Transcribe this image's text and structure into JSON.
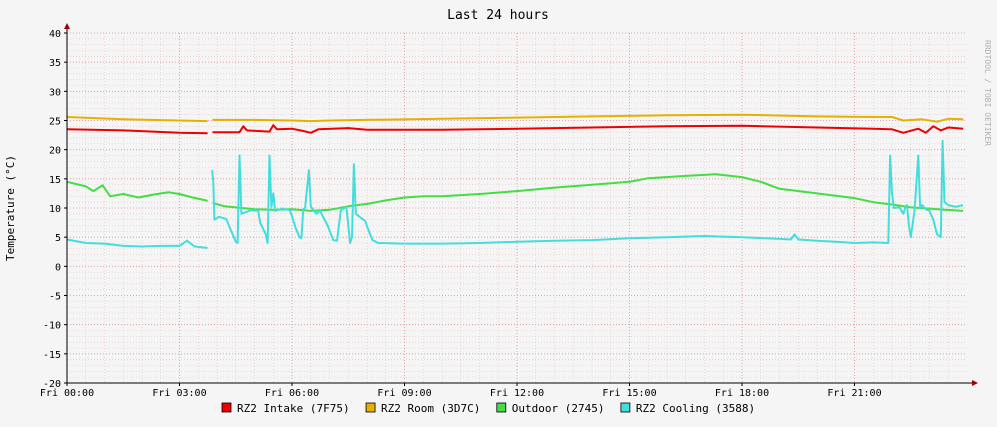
{
  "chart_data": {
    "type": "line",
    "title": "Last 24 hours",
    "ylabel": "Temperature (°C)",
    "watermark": "RRDTOOL / TOBI OETIKER",
    "ylim": [
      -20,
      40
    ],
    "y_ticks": [
      40,
      35,
      30,
      25,
      20,
      15,
      10,
      5,
      0,
      -5,
      -10,
      -15,
      -20
    ],
    "x_range_hours": [
      0,
      24
    ],
    "x_ticks": [
      {
        "hour": 0,
        "label": "Fri 00:00"
      },
      {
        "hour": 3,
        "label": "Fri 03:00"
      },
      {
        "hour": 6,
        "label": "Fri 06:00"
      },
      {
        "hour": 9,
        "label": "Fri 09:00"
      },
      {
        "hour": 12,
        "label": "Fri 12:00"
      },
      {
        "hour": 15,
        "label": "Fri 15:00"
      },
      {
        "hour": 18,
        "label": "Fri 18:00"
      },
      {
        "hour": 21,
        "label": "Fri 21:00"
      }
    ],
    "grid": true,
    "legend_position": "bottom",
    "series": [
      {
        "name": "RZ2 Intake (7F75)",
        "color": "#ee0000",
        "points": [
          [
            0,
            23.5
          ],
          [
            1.5,
            23.3
          ],
          [
            3.0,
            22.9
          ],
          [
            3.75,
            22.8
          ],
          [
            3.8,
            null
          ],
          [
            3.88,
            23.0
          ],
          [
            4.6,
            23.0
          ],
          [
            4.7,
            24.0
          ],
          [
            4.8,
            23.3
          ],
          [
            5.4,
            23.1
          ],
          [
            5.5,
            24.2
          ],
          [
            5.6,
            23.5
          ],
          [
            6.0,
            23.6
          ],
          [
            6.3,
            23.2
          ],
          [
            6.5,
            22.9
          ],
          [
            6.7,
            23.5
          ],
          [
            7.5,
            23.7
          ],
          [
            8,
            23.4
          ],
          [
            10,
            23.4
          ],
          [
            12,
            23.6
          ],
          [
            14,
            23.8
          ],
          [
            16,
            24.0
          ],
          [
            18,
            24.1
          ],
          [
            20,
            23.8
          ],
          [
            21.5,
            23.6
          ],
          [
            22.0,
            23.5
          ],
          [
            22.3,
            22.9
          ],
          [
            22.7,
            23.6
          ],
          [
            22.9,
            22.9
          ],
          [
            23.1,
            24.0
          ],
          [
            23.3,
            23.3
          ],
          [
            23.5,
            23.8
          ],
          [
            23.9,
            23.6
          ]
        ]
      },
      {
        "name": "RZ2 Room (3D7C)",
        "color": "#e6b000",
        "points": [
          [
            0,
            25.6
          ],
          [
            1.5,
            25.2
          ],
          [
            3.0,
            25.0
          ],
          [
            3.75,
            24.9
          ],
          [
            3.8,
            null
          ],
          [
            3.88,
            25.1
          ],
          [
            5,
            25.1
          ],
          [
            6,
            25.0
          ],
          [
            6.5,
            24.9
          ],
          [
            7,
            25.0
          ],
          [
            8,
            25.1
          ],
          [
            10,
            25.3
          ],
          [
            12,
            25.5
          ],
          [
            14,
            25.7
          ],
          [
            16,
            25.9
          ],
          [
            18,
            26.0
          ],
          [
            20,
            25.7
          ],
          [
            21.5,
            25.6
          ],
          [
            22.0,
            25.6
          ],
          [
            22.3,
            25.0
          ],
          [
            22.8,
            25.2
          ],
          [
            23.2,
            24.8
          ],
          [
            23.5,
            25.3
          ],
          [
            23.9,
            25.2
          ]
        ]
      },
      {
        "name": "Outdoor (2745)",
        "color": "#44dd44",
        "points": [
          [
            0,
            14.5
          ],
          [
            0.5,
            13.7
          ],
          [
            0.7,
            12.9
          ],
          [
            0.95,
            13.9
          ],
          [
            1.15,
            12.0
          ],
          [
            1.5,
            12.4
          ],
          [
            1.9,
            11.8
          ],
          [
            2.3,
            12.3
          ],
          [
            2.7,
            12.7
          ],
          [
            3.0,
            12.4
          ],
          [
            3.35,
            11.8
          ],
          [
            3.7,
            11.3
          ],
          [
            3.75,
            11.2
          ],
          [
            3.8,
            null
          ],
          [
            3.88,
            10.9
          ],
          [
            4.2,
            10.3
          ],
          [
            4.5,
            10.1
          ],
          [
            5,
            9.8
          ],
          [
            5.5,
            9.7
          ],
          [
            6,
            9.8
          ],
          [
            6.5,
            9.5
          ],
          [
            7.0,
            9.7
          ],
          [
            7.5,
            10.3
          ],
          [
            8,
            10.7
          ],
          [
            8.5,
            11.3
          ],
          [
            9,
            11.8
          ],
          [
            9.5,
            12.0
          ],
          [
            10,
            12.0
          ],
          [
            11,
            12.4
          ],
          [
            12,
            12.9
          ],
          [
            13,
            13.5
          ],
          [
            14,
            14.0
          ],
          [
            15,
            14.5
          ],
          [
            15.5,
            15.1
          ],
          [
            16.5,
            15.5
          ],
          [
            17.3,
            15.8
          ],
          [
            18.0,
            15.3
          ],
          [
            18.5,
            14.5
          ],
          [
            19.0,
            13.3
          ],
          [
            20,
            12.5
          ],
          [
            21,
            11.7
          ],
          [
            21.5,
            11.0
          ],
          [
            22.0,
            10.6
          ],
          [
            22.5,
            10.1
          ],
          [
            23.0,
            9.9
          ],
          [
            23.4,
            9.7
          ],
          [
            23.9,
            9.5
          ]
        ]
      },
      {
        "name": "RZ2 Cooling (3588)",
        "color": "#44dddd",
        "points": [
          [
            0,
            4.6
          ],
          [
            0.5,
            4.0
          ],
          [
            1.0,
            3.9
          ],
          [
            1.5,
            3.5
          ],
          [
            2.0,
            3.4
          ],
          [
            2.5,
            3.5
          ],
          [
            3.0,
            3.5
          ],
          [
            3.2,
            4.4
          ],
          [
            3.4,
            3.4
          ],
          [
            3.7,
            3.2
          ],
          [
            3.75,
            3.2
          ],
          [
            3.8,
            null
          ],
          [
            3.87,
            16.5
          ],
          [
            3.9,
            14.5
          ],
          [
            3.93,
            8.0
          ],
          [
            4.05,
            8.5
          ],
          [
            4.25,
            8.1
          ],
          [
            4.35,
            6.5
          ],
          [
            4.5,
            4.2
          ],
          [
            4.55,
            4.0
          ],
          [
            4.6,
            19.0
          ],
          [
            4.65,
            9.0
          ],
          [
            4.9,
            9.6
          ],
          [
            5.1,
            9.5
          ],
          [
            5.15,
            7.5
          ],
          [
            5.3,
            5.5
          ],
          [
            5.35,
            4.0
          ],
          [
            5.4,
            19.0
          ],
          [
            5.45,
            10.2
          ],
          [
            5.5,
            12.5
          ],
          [
            5.55,
            9.5
          ],
          [
            5.75,
            9.9
          ],
          [
            5.95,
            9.6
          ],
          [
            6.1,
            6.5
          ],
          [
            6.2,
            5.0
          ],
          [
            6.25,
            4.8
          ],
          [
            6.3,
            9.8
          ],
          [
            6.35,
            10.0
          ],
          [
            6.45,
            16.5
          ],
          [
            6.5,
            10.2
          ],
          [
            6.65,
            9.0
          ],
          [
            6.75,
            9.5
          ],
          [
            6.95,
            7.0
          ],
          [
            7.1,
            4.5
          ],
          [
            7.2,
            4.4
          ],
          [
            7.3,
            9.6
          ],
          [
            7.45,
            10.2
          ],
          [
            7.5,
            7.0
          ],
          [
            7.55,
            4.0
          ],
          [
            7.6,
            5.0
          ],
          [
            7.65,
            17.5
          ],
          [
            7.7,
            9.0
          ],
          [
            7.8,
            8.5
          ],
          [
            7.95,
            7.8
          ],
          [
            8.05,
            6.0
          ],
          [
            8.15,
            4.5
          ],
          [
            8.3,
            4.0
          ],
          [
            9,
            3.9
          ],
          [
            10,
            3.9
          ],
          [
            11,
            4.0
          ],
          [
            12,
            4.2
          ],
          [
            13,
            4.4
          ],
          [
            14,
            4.5
          ],
          [
            15,
            4.8
          ],
          [
            16,
            5.0
          ],
          [
            17,
            5.2
          ],
          [
            18,
            5.0
          ],
          [
            19,
            4.7
          ],
          [
            19.3,
            4.6
          ],
          [
            19.4,
            5.5
          ],
          [
            19.5,
            4.6
          ],
          [
            20,
            4.4
          ],
          [
            20.5,
            4.2
          ],
          [
            21,
            4.0
          ],
          [
            21.5,
            4.1
          ],
          [
            21.9,
            4.0
          ],
          [
            21.95,
            19.0
          ],
          [
            22.0,
            12.5
          ],
          [
            22.05,
            10.0
          ],
          [
            22.2,
            10.1
          ],
          [
            22.3,
            9.0
          ],
          [
            22.35,
            10.0
          ],
          [
            22.4,
            10.5
          ],
          [
            22.45,
            7.0
          ],
          [
            22.5,
            5.0
          ],
          [
            22.6,
            9.5
          ],
          [
            22.7,
            19.0
          ],
          [
            22.75,
            10.0
          ],
          [
            22.8,
            10.5
          ],
          [
            22.9,
            9.8
          ],
          [
            23.0,
            9.5
          ],
          [
            23.1,
            8.0
          ],
          [
            23.2,
            5.5
          ],
          [
            23.3,
            5.0
          ],
          [
            23.35,
            21.5
          ],
          [
            23.4,
            11.0
          ],
          [
            23.5,
            10.5
          ],
          [
            23.7,
            10.2
          ],
          [
            23.9,
            10.5
          ]
        ]
      }
    ]
  }
}
